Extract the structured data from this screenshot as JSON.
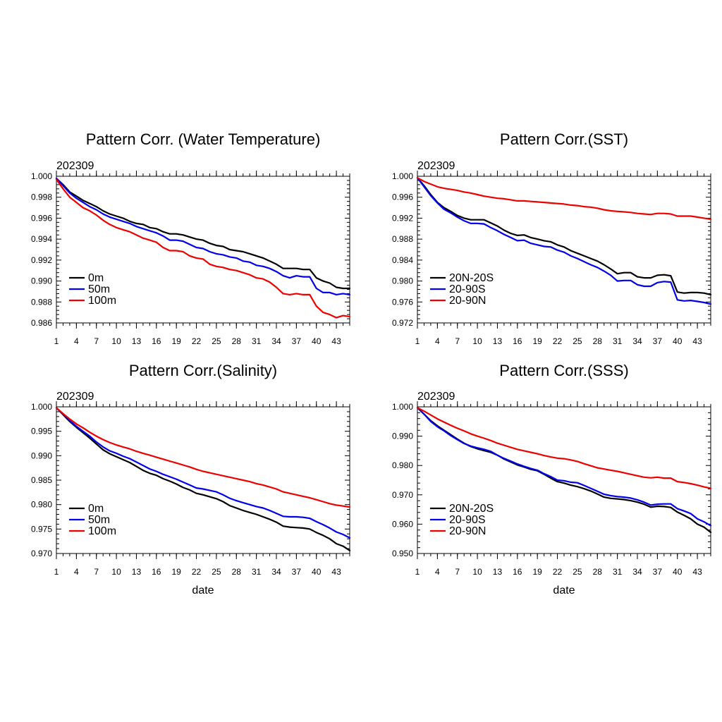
{
  "chart_data": [
    {
      "type": "line",
      "title": "Pattern Corr. (Water Temperature)",
      "subtitle": "202309",
      "xlabel": "",
      "xlim": [
        1,
        45
      ],
      "ylim": [
        0.986,
        1.0
      ],
      "ystep": 0.002,
      "ydecimals": 3,
      "xticks": [
        1,
        4,
        7,
        10,
        13,
        16,
        19,
        22,
        25,
        28,
        31,
        34,
        37,
        40,
        43
      ],
      "yticks": [
        "1.000",
        "0.998",
        "0.996",
        "0.994",
        "0.992",
        "0.990",
        "0.988",
        "0.986"
      ],
      "xtick_labels": [
        "1",
        "4",
        "7",
        "10",
        "13",
        "16",
        "19",
        "22",
        "25",
        "28",
        "31",
        "34",
        "37",
        "40",
        "43"
      ],
      "legend_placement": "bottom-left",
      "series": [
        {
          "name": "0m",
          "color": "#000000",
          "values": [
            0.9998,
            0.9992,
            0.9985,
            0.9981,
            0.9977,
            0.9974,
            0.9971,
            0.9967,
            0.9964,
            0.9962,
            0.996,
            0.9957,
            0.9955,
            0.9954,
            0.9951,
            0.995,
            0.9947,
            0.9945,
            0.9945,
            0.9944,
            0.9942,
            0.994,
            0.9939,
            0.9936,
            0.9934,
            0.9933,
            0.993,
            0.9929,
            0.9928,
            0.9926,
            0.9924,
            0.9922,
            0.9919,
            0.9916,
            0.9912,
            0.9912,
            0.9912,
            0.9911,
            0.9911,
            0.9903,
            0.99,
            0.9898,
            0.9894,
            0.9893,
            0.9893
          ]
        },
        {
          "name": "50m",
          "color": "#0000ee",
          "values": [
            0.9998,
            0.9991,
            0.9984,
            0.9979,
            0.9975,
            0.9971,
            0.9968,
            0.9964,
            0.9961,
            0.9959,
            0.9957,
            0.9955,
            0.9952,
            0.995,
            0.9948,
            0.9946,
            0.9943,
            0.9939,
            0.9939,
            0.9938,
            0.9935,
            0.9932,
            0.9931,
            0.9928,
            0.9926,
            0.9925,
            0.9923,
            0.9922,
            0.9919,
            0.9918,
            0.9915,
            0.9914,
            0.9912,
            0.9909,
            0.9905,
            0.9903,
            0.9905,
            0.9904,
            0.9904,
            0.9893,
            0.9889,
            0.9889,
            0.9887,
            0.9888,
            0.9887
          ]
        },
        {
          "name": "100m",
          "color": "#ee0000",
          "values": [
            0.9997,
            0.9988,
            0.998,
            0.9975,
            0.997,
            0.9967,
            0.9963,
            0.9958,
            0.9954,
            0.9951,
            0.9949,
            0.9947,
            0.9944,
            0.9941,
            0.9939,
            0.9937,
            0.9932,
            0.9929,
            0.9929,
            0.9928,
            0.9924,
            0.9922,
            0.9921,
            0.9916,
            0.9914,
            0.9913,
            0.9911,
            0.991,
            0.9908,
            0.9906,
            0.9903,
            0.9902,
            0.9899,
            0.9894,
            0.9888,
            0.9887,
            0.9888,
            0.9887,
            0.9887,
            0.9876,
            0.987,
            0.9868,
            0.9865,
            0.9867,
            0.9866
          ]
        }
      ]
    },
    {
      "type": "line",
      "title": "Pattern Corr.(SST)",
      "subtitle": "202309",
      "xlabel": "",
      "xlim": [
        1,
        45
      ],
      "ylim": [
        0.972,
        1.0
      ],
      "ystep": 0.004,
      "ydecimals": 3,
      "xticks": [
        1,
        4,
        7,
        10,
        13,
        16,
        19,
        22,
        25,
        28,
        31,
        34,
        37,
        40,
        43
      ],
      "yticks": [
        "1.000",
        "0.996",
        "0.992",
        "0.988",
        "0.984",
        "0.980",
        "0.976",
        "0.972"
      ],
      "xtick_labels": [
        "1",
        "4",
        "7",
        "10",
        "13",
        "16",
        "19",
        "22",
        "25",
        "28",
        "31",
        "34",
        "37",
        "40",
        "43"
      ],
      "legend_placement": "bottom-left",
      "series": [
        {
          "name": "20N-20S",
          "color": "#000000",
          "values": [
            0.9997,
            0.9982,
            0.9965,
            0.995,
            0.994,
            0.9933,
            0.9925,
            0.992,
            0.9917,
            0.9917,
            0.9917,
            0.9911,
            0.9905,
            0.9897,
            0.9891,
            0.9887,
            0.9888,
            0.9883,
            0.988,
            0.9877,
            0.9875,
            0.9869,
            0.9865,
            0.9858,
            0.9853,
            0.9848,
            0.9843,
            0.9838,
            0.9831,
            0.9823,
            0.9814,
            0.9816,
            0.9816,
            0.9808,
            0.9806,
            0.9806,
            0.9811,
            0.9812,
            0.981,
            0.9779,
            0.9777,
            0.9778,
            0.9778,
            0.9777,
            0.9774
          ]
        },
        {
          "name": "20-90S",
          "color": "#0000ee",
          "values": [
            0.9997,
            0.998,
            0.9963,
            0.9949,
            0.9937,
            0.993,
            0.9922,
            0.9915,
            0.991,
            0.991,
            0.9909,
            0.9902,
            0.9896,
            0.9889,
            0.9883,
            0.9877,
            0.9878,
            0.9872,
            0.9869,
            0.9866,
            0.9865,
            0.9859,
            0.9855,
            0.9848,
            0.9843,
            0.9837,
            0.9831,
            0.9826,
            0.9819,
            0.9811,
            0.98,
            0.9801,
            0.9801,
            0.9793,
            0.979,
            0.979,
            0.9797,
            0.9799,
            0.9798,
            0.9764,
            0.9762,
            0.9763,
            0.9761,
            0.9759,
            0.9756
          ]
        },
        {
          "name": "20-90N",
          "color": "#ee0000",
          "values": [
            0.9997,
            0.999,
            0.9985,
            0.998,
            0.9977,
            0.9975,
            0.9973,
            0.997,
            0.9968,
            0.9965,
            0.9962,
            0.996,
            0.9958,
            0.9957,
            0.9955,
            0.9953,
            0.9953,
            0.9952,
            0.9951,
            0.995,
            0.9949,
            0.9948,
            0.9947,
            0.9945,
            0.9944,
            0.9942,
            0.9941,
            0.9939,
            0.9936,
            0.9934,
            0.9933,
            0.9932,
            0.9931,
            0.9929,
            0.9928,
            0.9927,
            0.9929,
            0.9929,
            0.9928,
            0.9924,
            0.9924,
            0.9924,
            0.9922,
            0.992,
            0.9918
          ]
        }
      ]
    },
    {
      "type": "line",
      "title": "Pattern Corr.(Salinity)",
      "subtitle": "202309",
      "xlabel": "date",
      "xlim": [
        1,
        45
      ],
      "ylim": [
        0.97,
        1.0
      ],
      "ystep": 0.005,
      "ydecimals": 3,
      "xticks": [
        1,
        4,
        7,
        10,
        13,
        16,
        19,
        22,
        25,
        28,
        31,
        34,
        37,
        40,
        43
      ],
      "yticks": [
        "1.000",
        "0.995",
        "0.990",
        "0.985",
        "0.980",
        "0.975",
        "0.970"
      ],
      "xtick_labels": [
        "1",
        "4",
        "7",
        "10",
        "13",
        "16",
        "19",
        "22",
        "25",
        "28",
        "31",
        "34",
        "37",
        "40",
        "43"
      ],
      "legend_placement": "bottom-left",
      "series": [
        {
          "name": "0m",
          "color": "#000000",
          "values": [
            0.9998,
            0.9984,
            0.997,
            0.9958,
            0.9947,
            0.9936,
            0.9924,
            0.9912,
            0.9904,
            0.9898,
            0.9892,
            0.9886,
            0.9878,
            0.987,
            0.9864,
            0.986,
            0.9853,
            0.9848,
            0.9842,
            0.9835,
            0.983,
            0.9823,
            0.982,
            0.9816,
            0.9812,
            0.9806,
            0.9798,
            0.9793,
            0.9788,
            0.9784,
            0.978,
            0.9775,
            0.977,
            0.9764,
            0.9756,
            0.9754,
            0.9753,
            0.9752,
            0.975,
            0.9743,
            0.9737,
            0.973,
            0.972,
            0.9715,
            0.9706
          ]
        },
        {
          "name": "50m",
          "color": "#0000ee",
          "values": [
            0.9998,
            0.9985,
            0.9972,
            0.996,
            0.995,
            0.994,
            0.9928,
            0.9918,
            0.991,
            0.9905,
            0.9899,
            0.9894,
            0.9887,
            0.988,
            0.9873,
            0.9868,
            0.9862,
            0.9857,
            0.9852,
            0.9846,
            0.984,
            0.9834,
            0.9832,
            0.9829,
            0.9826,
            0.982,
            0.9813,
            0.9808,
            0.9804,
            0.98,
            0.9796,
            0.9793,
            0.9788,
            0.9782,
            0.9776,
            0.9775,
            0.9775,
            0.9774,
            0.9772,
            0.9765,
            0.9759,
            0.9752,
            0.9744,
            0.9739,
            0.9732
          ]
        },
        {
          "name": "100m",
          "color": "#ee0000",
          "values": [
            0.9998,
            0.9986,
            0.9975,
            0.9965,
            0.9957,
            0.9948,
            0.994,
            0.9933,
            0.9927,
            0.9922,
            0.9918,
            0.9914,
            0.9909,
            0.9905,
            0.9901,
            0.9897,
            0.9893,
            0.9889,
            0.9885,
            0.9881,
            0.9877,
            0.9872,
            0.9868,
            0.9865,
            0.9862,
            0.9859,
            0.9856,
            0.9853,
            0.985,
            0.9847,
            0.9843,
            0.984,
            0.9836,
            0.9832,
            0.9826,
            0.9823,
            0.982,
            0.9817,
            0.9814,
            0.981,
            0.9806,
            0.9802,
            0.9799,
            0.9797,
            0.9795
          ]
        }
      ]
    },
    {
      "type": "line",
      "title": "Pattern Corr.(SSS)",
      "subtitle": "202309",
      "xlabel": "date",
      "xlim": [
        1,
        45
      ],
      "ylim": [
        0.95,
        1.0
      ],
      "ystep": 0.01,
      "ydecimals": 3,
      "xticks": [
        1,
        4,
        7,
        10,
        13,
        16,
        19,
        22,
        25,
        28,
        31,
        34,
        37,
        40,
        43
      ],
      "yticks": [
        "1.000",
        "0.990",
        "0.980",
        "0.970",
        "0.960",
        "0.950"
      ],
      "xtick_labels": [
        "1",
        "4",
        "7",
        "10",
        "13",
        "16",
        "19",
        "22",
        "25",
        "28",
        "31",
        "34",
        "37",
        "40",
        "43"
      ],
      "legend_placement": "bottom-left",
      "series": [
        {
          "name": "20N-20S",
          "color": "#000000",
          "values": [
            0.9997,
            0.9975,
            0.9953,
            0.9935,
            0.992,
            0.9905,
            0.989,
            0.9876,
            0.9865,
            0.9857,
            0.9851,
            0.9845,
            0.9835,
            0.9822,
            0.9812,
            0.9802,
            0.9795,
            0.9787,
            0.9782,
            0.977,
            0.9757,
            0.9745,
            0.974,
            0.9733,
            0.9728,
            0.9721,
            0.9713,
            0.9703,
            0.9692,
            0.9688,
            0.9686,
            0.9684,
            0.968,
            0.9675,
            0.9668,
            0.9658,
            0.9661,
            0.966,
            0.9657,
            0.9641,
            0.963,
            0.9618,
            0.96,
            0.959,
            0.9572
          ]
        },
        {
          "name": "20-90S",
          "color": "#0000ee",
          "values": [
            0.9997,
            0.9975,
            0.995,
            0.9932,
            0.9918,
            0.9902,
            0.9888,
            0.9875,
            0.9866,
            0.986,
            0.9855,
            0.9848,
            0.9835,
            0.9824,
            0.9815,
            0.9805,
            0.9797,
            0.979,
            0.9784,
            0.9772,
            0.9762,
            0.975,
            0.9748,
            0.9743,
            0.9741,
            0.9732,
            0.9722,
            0.9712,
            0.9702,
            0.9697,
            0.9694,
            0.9692,
            0.9689,
            0.9683,
            0.9675,
            0.9665,
            0.9668,
            0.9669,
            0.9669,
            0.9653,
            0.9645,
            0.9636,
            0.9618,
            0.9608,
            0.9595
          ]
        },
        {
          "name": "20-90N",
          "color": "#ee0000",
          "values": [
            0.9997,
            0.9985,
            0.9972,
            0.9959,
            0.9948,
            0.9937,
            0.9927,
            0.9918,
            0.9908,
            0.99,
            0.9893,
            0.9885,
            0.9876,
            0.9869,
            0.9862,
            0.9855,
            0.985,
            0.9845,
            0.984,
            0.9834,
            0.9829,
            0.9825,
            0.9823,
            0.9819,
            0.9814,
            0.9806,
            0.9799,
            0.9792,
            0.9788,
            0.9784,
            0.978,
            0.9775,
            0.977,
            0.9765,
            0.976,
            0.9758,
            0.976,
            0.9757,
            0.9757,
            0.9745,
            0.9742,
            0.9738,
            0.9733,
            0.9727,
            0.9722
          ]
        }
      ]
    }
  ]
}
